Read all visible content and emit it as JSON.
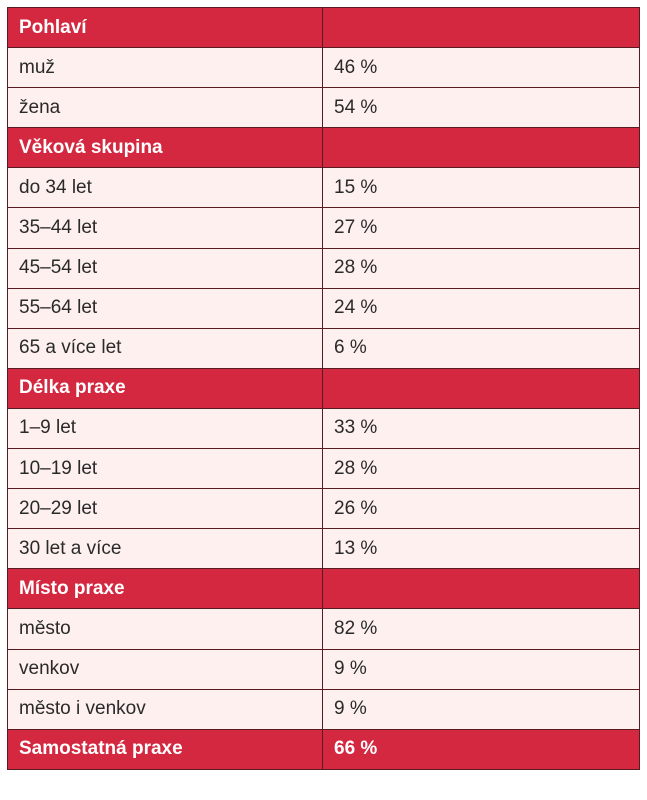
{
  "sections": [
    {
      "title": "Pohlaví",
      "rows": [
        {
          "label": "muž",
          "value": "46 %"
        },
        {
          "label": "žena",
          "value": "54 %"
        }
      ]
    },
    {
      "title": "Věková skupina",
      "rows": [
        {
          "label": "do 34 let",
          "value": "15 %"
        },
        {
          "label": "35–44 let",
          "value": "27 %"
        },
        {
          "label": "45–54 let",
          "value": "28 %"
        },
        {
          "label": "55–64 let",
          "value": "24 %"
        },
        {
          "label": "65 a více let",
          "value": "6 %"
        }
      ]
    },
    {
      "title": "Délka praxe",
      "rows": [
        {
          "label": "1–9 let",
          "value": "33 %"
        },
        {
          "label": "10–19 let",
          "value": "28 %"
        },
        {
          "label": "20–29 let",
          "value": "26 %"
        },
        {
          "label": "30 let a více",
          "value": "13 %"
        }
      ]
    },
    {
      "title": "Místo praxe",
      "rows": [
        {
          "label": "město",
          "value": "82 %"
        },
        {
          "label": "venkov",
          "value": "9 %"
        },
        {
          "label": "město i venkov",
          "value": "9 %"
        }
      ]
    }
  ],
  "summary": {
    "label": "Samostatná praxe",
    "value": "66 %"
  },
  "colors": {
    "header_bg": "#d42840",
    "row_bg": "#fdf0ee",
    "border": "#5a1a22"
  }
}
